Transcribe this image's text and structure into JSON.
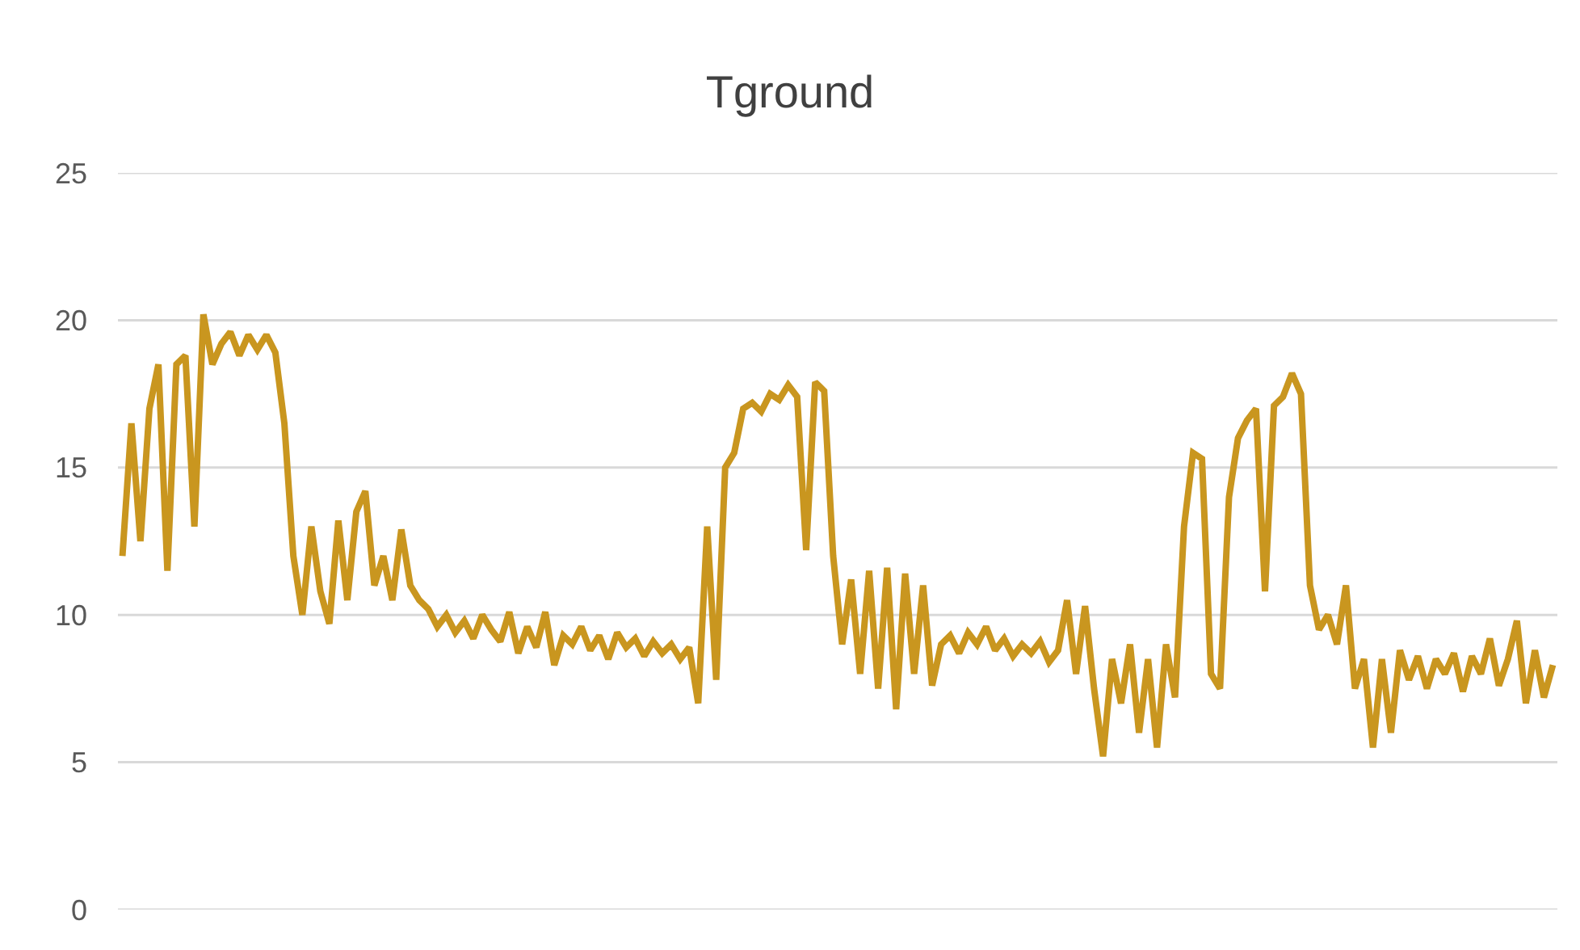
{
  "chart_data": {
    "type": "line",
    "title": "Tground",
    "categories": [
      null,
      null,
      null,
      null,
      null,
      null,
      null,
      null,
      null,
      null,
      null,
      null,
      null,
      null,
      null,
      null,
      null,
      null,
      null,
      null,
      null,
      null,
      null,
      null,
      null,
      null,
      null,
      null,
      null,
      null,
      null,
      null,
      null,
      null,
      null,
      null,
      null,
      null,
      null,
      null,
      null,
      null,
      null,
      null,
      null,
      null,
      null,
      null,
      null,
      null,
      null,
      null,
      null,
      null,
      null,
      null,
      null,
      null,
      null,
      null,
      null,
      null,
      null,
      null,
      null,
      null,
      null,
      null,
      null,
      null,
      null,
      null,
      null,
      null,
      null,
      null,
      null,
      null,
      null,
      null,
      null,
      null,
      null,
      null,
      null,
      null,
      null,
      null,
      null,
      null,
      null,
      null,
      null,
      null,
      null,
      null,
      null,
      null,
      null,
      null,
      null,
      null,
      null,
      null,
      null,
      null,
      null,
      null,
      null,
      null,
      null,
      null,
      null,
      null,
      null,
      null,
      null,
      null,
      null,
      null,
      null,
      null,
      null,
      null,
      null,
      null,
      null,
      null,
      null,
      null,
      null,
      null,
      null,
      null,
      null,
      null,
      null,
      null,
      null,
      null,
      null,
      null,
      null,
      null,
      null,
      null,
      null,
      null,
      null,
      null,
      null,
      null,
      null,
      null,
      null,
      null,
      null,
      null,
      null,
      null
    ],
    "series": [
      {
        "color": "#c9961f",
        "values": [
          12,
          16.5,
          12.5,
          17,
          18.5,
          11.5,
          18.5,
          18.8,
          13,
          20.2,
          18.5,
          19.2,
          19.6,
          18.8,
          19.5,
          19,
          19.5,
          18.9,
          16.5,
          12,
          10,
          13,
          10.8,
          9.7,
          13.2,
          10.5,
          13.5,
          14.2,
          11,
          12,
          10.5,
          12.9,
          11,
          10.5,
          10.2,
          9.6,
          10,
          9.4,
          9.8,
          9.2,
          10,
          9.5,
          9.1,
          10.1,
          8.7,
          9.6,
          8.9,
          10.1,
          8.3,
          9.3,
          9.0,
          9.6,
          8.8,
          9.3,
          8.5,
          9.4,
          8.9,
          9.2,
          8.6,
          9.1,
          8.7,
          9.0,
          8.5,
          8.9,
          7.0,
          13.0,
          7.8,
          15.0,
          15.5,
          17.0,
          17.2,
          16.9,
          17.5,
          17.3,
          17.8,
          17.4,
          12.2,
          17.9,
          17.6,
          12.0,
          9.0,
          11.2,
          8.0,
          11.5,
          7.5,
          11.6,
          6.8,
          11.4,
          8.0,
          11.0,
          7.6,
          9.0,
          9.3,
          8.7,
          9.4,
          9.0,
          9.6,
          8.8,
          9.2,
          8.6,
          9.0,
          8.7,
          9.1,
          8.4,
          8.8,
          10.5,
          8.0,
          10.3,
          7.5,
          5.2,
          8.5,
          7.0,
          9.0,
          6.0,
          8.5,
          5.5,
          9.0,
          7.2,
          13.0,
          15.5,
          15.3,
          8.0,
          7.5,
          14.0,
          16.0,
          16.6,
          17.0,
          10.8,
          17.1,
          17.4,
          18.2,
          17.5,
          11.0,
          9.5,
          10.0,
          9.0,
          11.0,
          7.5,
          8.5,
          5.5,
          8.5,
          6.0,
          8.8,
          7.8,
          8.6,
          7.5,
          8.5,
          8.0,
          8.7,
          7.4,
          8.6,
          8.0,
          9.2,
          7.6,
          8.5,
          9.8,
          7.0,
          8.8,
          7.2,
          8.3
        ]
      }
    ],
    "ylim": [
      0,
      25
    ],
    "yticks": [
      0,
      5,
      10,
      15,
      20,
      25
    ],
    "grid": "y",
    "marker": "none",
    "line_style": "solid"
  }
}
